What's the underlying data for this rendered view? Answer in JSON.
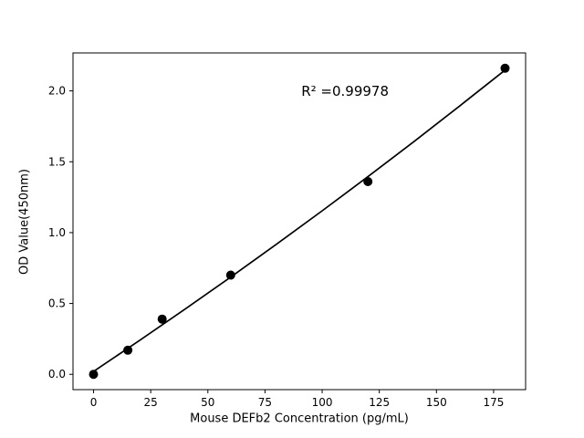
{
  "chart_data": {
    "type": "scatter",
    "title": "",
    "xlabel": "Mouse DEFb2 Concentration (pg/mL)",
    "ylabel": "OD Value(450nm)",
    "annotation": {
      "text": "R² =0.99978",
      "x": 110,
      "y": 2.0
    },
    "x": [
      0,
      15,
      30,
      60,
      120,
      180
    ],
    "y": [
      0.0,
      0.17,
      0.39,
      0.7,
      1.36,
      2.16
    ],
    "fit_line": [
      [
        0,
        0.02
      ],
      [
        20,
        0.238
      ],
      [
        40,
        0.46
      ],
      [
        60,
        0.686
      ],
      [
        80,
        0.918
      ],
      [
        100,
        1.154
      ],
      [
        120,
        1.395
      ],
      [
        140,
        1.641
      ],
      [
        160,
        1.892
      ],
      [
        180,
        2.147
      ]
    ],
    "xlim": [
      -9,
      189
    ],
    "ylim": [
      -0.108,
      2.268
    ],
    "xticks": [
      0,
      25,
      50,
      75,
      100,
      125,
      150,
      175
    ],
    "xtick_labels": [
      "0",
      "25",
      "50",
      "75",
      "100",
      "125",
      "150",
      "175"
    ],
    "yticks": [
      0.0,
      0.5,
      1.0,
      1.5,
      2.0
    ],
    "ytick_labels": [
      "0.0",
      "0.5",
      "1.0",
      "1.5",
      "2.0"
    ],
    "grid": false,
    "legend_position": "none",
    "marker_color": "#000000",
    "line_color": "#000000",
    "axis_color": "#000000",
    "background": "#ffffff"
  }
}
